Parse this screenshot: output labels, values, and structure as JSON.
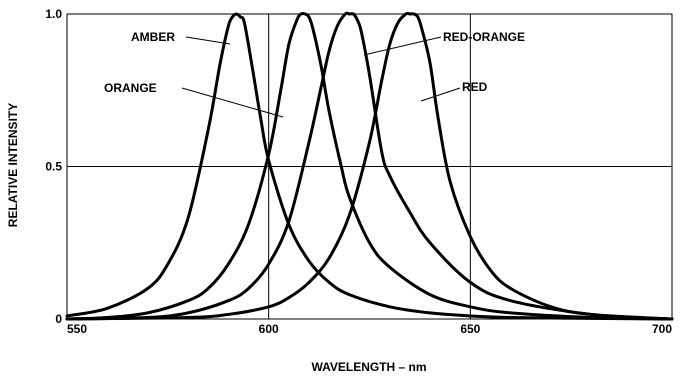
{
  "chart_data": {
    "type": "line",
    "xlabel": "WAVELENGTH – nm",
    "ylabel": "RELATIVE INTENSITY",
    "xlim": [
      550,
      700
    ],
    "ylim": [
      0,
      1.0
    ],
    "x_ticks": [
      "550",
      "600",
      "650",
      "700"
    ],
    "y_ticks": [
      "0",
      "0.5",
      "1.0"
    ],
    "grid": "vertical lines at 600 and 650; horizontal line at 0.5",
    "line_color": "#000000",
    "series": [
      {
        "name": "AMBER",
        "peak_nm": 592,
        "x": [
          550,
          560,
          570,
          575,
          580,
          585,
          588,
          590,
          591,
          592,
          593,
          594,
          596,
          598,
          600,
          605,
          610,
          615,
          620,
          630,
          640,
          650,
          660,
          680,
          700
        ],
        "y": [
          0.01,
          0.035,
          0.1,
          0.18,
          0.33,
          0.62,
          0.84,
          0.96,
          0.99,
          1.0,
          0.99,
          0.97,
          0.82,
          0.66,
          0.52,
          0.31,
          0.19,
          0.12,
          0.08,
          0.04,
          0.02,
          0.01,
          0.005,
          0.002,
          0.0
        ]
      },
      {
        "name": "ORANGE",
        "peak_nm": 609,
        "x": [
          550,
          560,
          570,
          580,
          585,
          590,
          595,
          600,
          603,
          605,
          607,
          608,
          609,
          610,
          611,
          613,
          615,
          618,
          620,
          625,
          630,
          640,
          650,
          660,
          680,
          700
        ],
        "y": [
          0.0,
          0.005,
          0.02,
          0.06,
          0.1,
          0.18,
          0.31,
          0.54,
          0.75,
          0.9,
          0.98,
          1.0,
          1.0,
          0.99,
          0.95,
          0.83,
          0.68,
          0.5,
          0.4,
          0.25,
          0.17,
          0.08,
          0.04,
          0.02,
          0.005,
          0.0
        ]
      },
      {
        "name": "RED-ORANGE",
        "peak_nm": 621,
        "x": [
          550,
          570,
          580,
          590,
          595,
          600,
          605,
          610,
          613,
          615,
          617,
          619,
          620,
          621,
          622,
          623,
          625,
          628,
          630,
          635,
          640,
          650,
          660,
          680,
          700
        ],
        "y": [
          0.0,
          0.005,
          0.02,
          0.06,
          0.1,
          0.18,
          0.32,
          0.58,
          0.76,
          0.88,
          0.96,
          1.0,
          1.0,
          1.0,
          0.98,
          0.94,
          0.8,
          0.55,
          0.47,
          0.35,
          0.25,
          0.12,
          0.06,
          0.015,
          0.0
        ]
      },
      {
        "name": "RED",
        "peak_nm": 636,
        "x": [
          550,
          580,
          590,
          600,
          605,
          610,
          615,
          620,
          625,
          628,
          630,
          632,
          634,
          635,
          636,
          637,
          638,
          640,
          642,
          645,
          650,
          655,
          660,
          670,
          680,
          700
        ],
        "y": [
          0.0,
          0.005,
          0.015,
          0.04,
          0.07,
          0.12,
          0.2,
          0.34,
          0.58,
          0.78,
          0.9,
          0.97,
          1.0,
          1.0,
          1.0,
          0.99,
          0.95,
          0.84,
          0.66,
          0.45,
          0.27,
          0.16,
          0.1,
          0.04,
          0.015,
          0.0
        ]
      }
    ],
    "annotations": [
      {
        "text": "AMBER",
        "points_to": "AMBER"
      },
      {
        "text": "ORANGE",
        "points_to": "ORANGE"
      },
      {
        "text": "RED-ORANGE",
        "points_to": "RED-ORANGE"
      },
      {
        "text": "RED",
        "points_to": "RED"
      }
    ]
  }
}
